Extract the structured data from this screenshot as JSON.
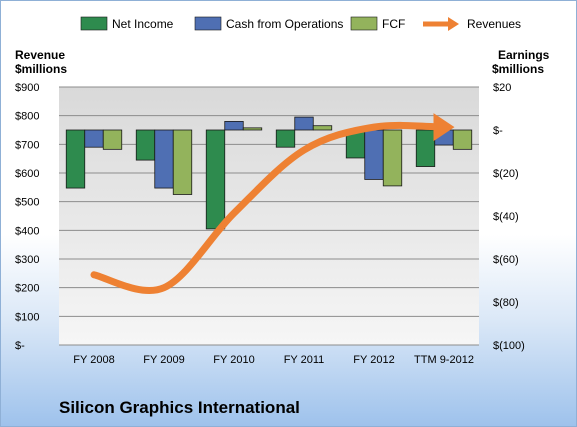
{
  "chart_data": {
    "type": "bar",
    "categories": [
      "FY 2008",
      "FY 2009",
      "FY 2010",
      "FY 2011",
      "FY 2012",
      "TTM 9-2012"
    ],
    "series": [
      {
        "name": "Net Income",
        "axis": "right",
        "color": "#2e8b4e",
        "values": [
          -27,
          -14,
          -46,
          -8,
          -13,
          -17
        ]
      },
      {
        "name": "Cash from Operations",
        "axis": "right",
        "color": "#4f6fb3",
        "values": [
          -8,
          -27,
          4,
          6,
          -23,
          -7
        ]
      },
      {
        "name": "FCF",
        "axis": "right",
        "color": "#93b35c",
        "values": [
          -9,
          -30,
          1,
          2,
          -26,
          -9
        ]
      },
      {
        "name": "Revenues",
        "axis": "left",
        "type": "line",
        "color": "#ee8133",
        "values": [
          245,
          200,
          460,
          680,
          760,
          760
        ]
      }
    ],
    "left_axis": {
      "label_line1": "Revenue",
      "label_line2": "$millions",
      "ylim": [
        0,
        900
      ],
      "ticks": [
        "$-",
        "$100",
        "$200",
        "$300",
        "$400",
        "$500",
        "$600",
        "$700",
        "$800",
        "$900"
      ]
    },
    "right_axis": {
      "label_line1": "Earnings",
      "label_line2": "$millions",
      "ylim": [
        -100,
        20
      ],
      "ticks": [
        "$(100)",
        "$(80)",
        "$(60)",
        "$(40)",
        "$(20)",
        "$-",
        "$20"
      ]
    },
    "legend_position": "top",
    "grid": true
  },
  "footer": {
    "title": "Silicon Graphics International"
  }
}
